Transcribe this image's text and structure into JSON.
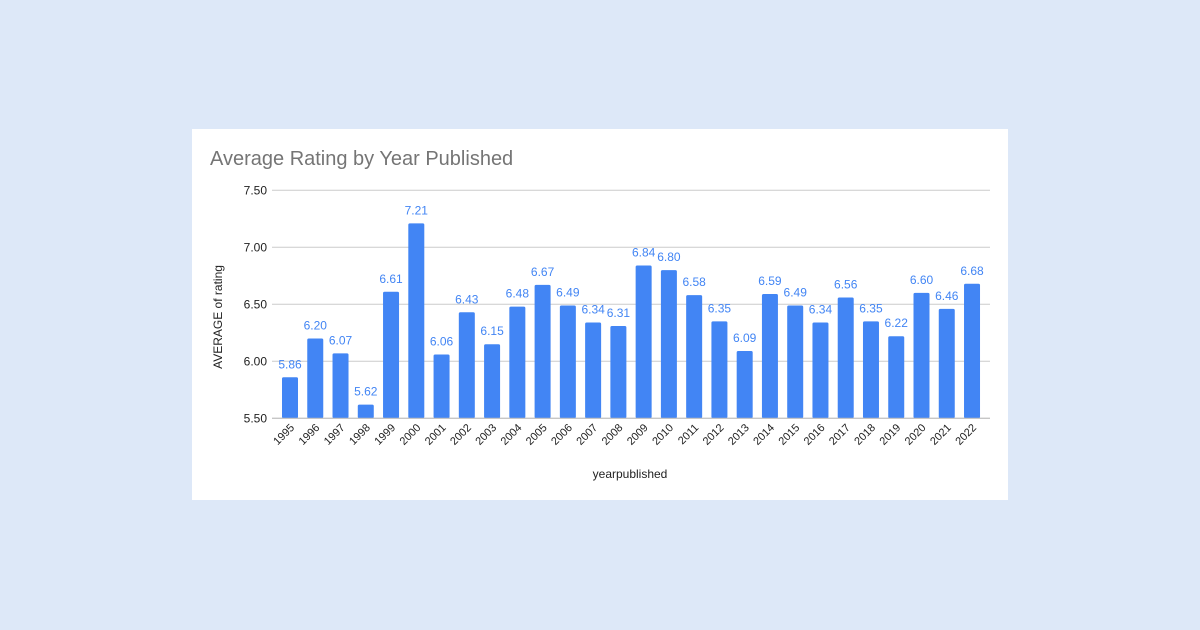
{
  "chart_data": {
    "type": "bar",
    "title": "Average Rating by Year Published",
    "xlabel": "yearpublished",
    "ylabel": "AVERAGE of rating",
    "ylim": [
      5.5,
      7.5
    ],
    "yticks": [
      "5.50",
      "6.00",
      "6.50",
      "7.00",
      "7.50"
    ],
    "grid": true,
    "bar_color": "#4285f4",
    "label_color": "#4285f4",
    "categories": [
      "1995",
      "1996",
      "1997",
      "1998",
      "1999",
      "2000",
      "2001",
      "2002",
      "2003",
      "2004",
      "2005",
      "2006",
      "2007",
      "2008",
      "2009",
      "2010",
      "2011",
      "2012",
      "2013",
      "2014",
      "2015",
      "2016",
      "2017",
      "2018",
      "2019",
      "2020",
      "2021",
      "2022"
    ],
    "values": [
      5.86,
      6.2,
      6.07,
      5.62,
      6.61,
      7.21,
      6.06,
      6.43,
      6.15,
      6.48,
      6.67,
      6.49,
      6.34,
      6.31,
      6.84,
      6.8,
      6.58,
      6.35,
      6.09,
      6.59,
      6.49,
      6.34,
      6.56,
      6.35,
      6.22,
      6.6,
      6.46,
      6.68
    ]
  }
}
